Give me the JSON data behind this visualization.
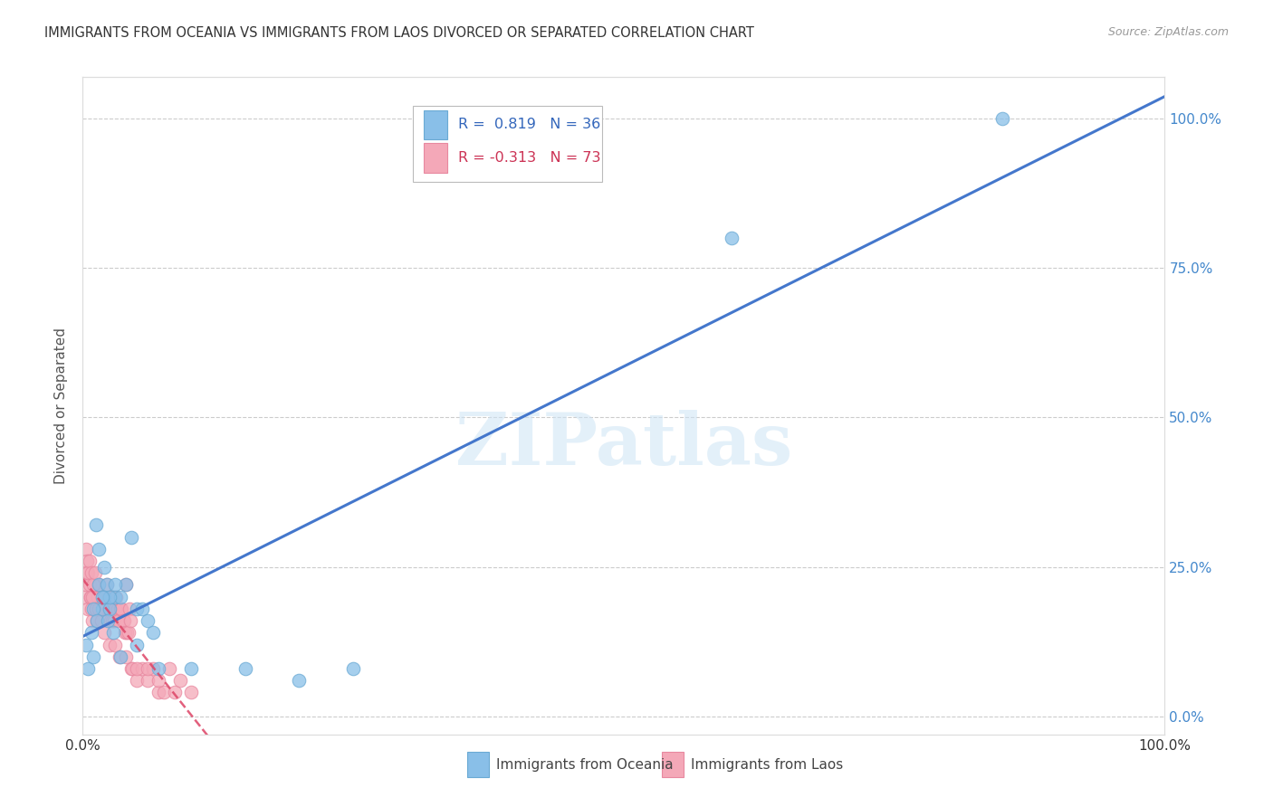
{
  "title": "IMMIGRANTS FROM OCEANIA VS IMMIGRANTS FROM LAOS DIVORCED OR SEPARATED CORRELATION CHART",
  "source": "Source: ZipAtlas.com",
  "ylabel": "Divorced or Separated",
  "ytick_labels": [
    "0.0%",
    "25.0%",
    "50.0%",
    "75.0%",
    "100.0%"
  ],
  "ytick_values": [
    0,
    25,
    50,
    75,
    100
  ],
  "legend_blue_label": "Immigrants from Oceania",
  "legend_pink_label": "Immigrants from Laos",
  "R_blue": 0.819,
  "N_blue": 36,
  "R_pink": -0.313,
  "N_pink": 73,
  "blue_color": "#89bfe8",
  "blue_edge_color": "#6aaad4",
  "blue_line_color": "#4477cc",
  "pink_color": "#f4a8b8",
  "pink_edge_color": "#e888a0",
  "pink_line_color": "#dd4466",
  "background_color": "#ffffff",
  "grid_color": "#cccccc",
  "watermark": "ZIPatlas",
  "blue_points_x": [
    0.5,
    1.0,
    1.5,
    1.8,
    2.0,
    2.2,
    2.5,
    3.0,
    3.5,
    4.0,
    4.5,
    5.0,
    5.5,
    6.0,
    6.5,
    1.2,
    1.5,
    2.0,
    2.5,
    3.0,
    0.8,
    1.0,
    1.3,
    1.8,
    2.3,
    2.8,
    3.5,
    5.0,
    7.0,
    10.0,
    15.0,
    20.0,
    25.0,
    60.0,
    85.0,
    0.3
  ],
  "blue_points_y": [
    8,
    10,
    22,
    18,
    20,
    22,
    18,
    20,
    20,
    22,
    30,
    18,
    18,
    16,
    14,
    32,
    28,
    25,
    20,
    22,
    14,
    18,
    16,
    20,
    16,
    14,
    10,
    12,
    8,
    8,
    8,
    6,
    8,
    80,
    100,
    12
  ],
  "pink_points_x": [
    0.2,
    0.3,
    0.4,
    0.5,
    0.6,
    0.7,
    0.8,
    0.9,
    1.0,
    1.1,
    1.2,
    1.3,
    1.4,
    1.5,
    1.6,
    1.7,
    1.8,
    1.9,
    2.0,
    2.1,
    2.2,
    2.3,
    2.4,
    2.5,
    2.6,
    2.7,
    2.8,
    2.9,
    3.0,
    3.1,
    3.2,
    3.3,
    3.4,
    3.5,
    3.6,
    3.7,
    3.8,
    3.9,
    4.0,
    4.1,
    4.2,
    4.3,
    4.4,
    4.5,
    4.6,
    5.0,
    5.5,
    6.0,
    6.5,
    7.0,
    7.5,
    8.0,
    8.5,
    9.0,
    0.3,
    0.4,
    0.5,
    0.6,
    0.7,
    0.8,
    0.9,
    1.0,
    1.1,
    1.2,
    1.5,
    2.0,
    2.5,
    3.0,
    4.0,
    5.0,
    6.0,
    7.0,
    10.0
  ],
  "pink_points_y": [
    20,
    22,
    24,
    18,
    22,
    20,
    18,
    16,
    20,
    22,
    18,
    16,
    20,
    22,
    18,
    16,
    20,
    18,
    20,
    20,
    22,
    18,
    20,
    18,
    16,
    16,
    20,
    16,
    18,
    20,
    18,
    16,
    10,
    18,
    18,
    16,
    16,
    14,
    22,
    14,
    14,
    18,
    16,
    8,
    8,
    6,
    8,
    6,
    8,
    4,
    4,
    8,
    4,
    6,
    28,
    26,
    24,
    26,
    20,
    24,
    20,
    22,
    24,
    18,
    18,
    14,
    12,
    12,
    10,
    8,
    8,
    6,
    4
  ]
}
